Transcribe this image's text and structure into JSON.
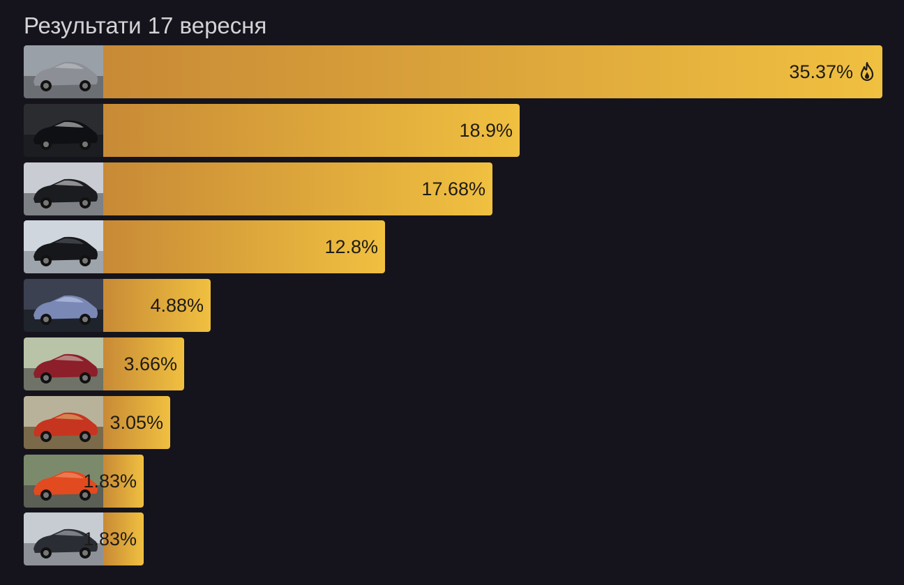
{
  "title": "Результати 17 вересня",
  "colors": {
    "background": "#15141c",
    "bar_start": "#c88a36",
    "bar_end": "#f0c040",
    "text": "#1e1b16"
  },
  "chart_data": {
    "type": "bar",
    "orientation": "horizontal",
    "values": [
      35.37,
      18.9,
      17.68,
      12.8,
      4.88,
      3.66,
      3.05,
      1.83,
      1.83
    ],
    "labels": [
      "35.37%",
      "18.9%",
      "17.68%",
      "12.8%",
      "4.88%",
      "3.66%",
      "3.05%",
      "1.83%",
      "1.83%"
    ],
    "category_images": [
      "silver-convertible-car-photo",
      "black-car-car-wash-photo",
      "black-hatchback-parking-photo",
      "black-coupe-garage-photo",
      "headlight-closeup-photo",
      "red-van-photo",
      "orange-car-courtyard-photo",
      "orange-hatchback-photo",
      "dark-wagon-photo"
    ],
    "top_marker_icon": "fire-icon"
  }
}
